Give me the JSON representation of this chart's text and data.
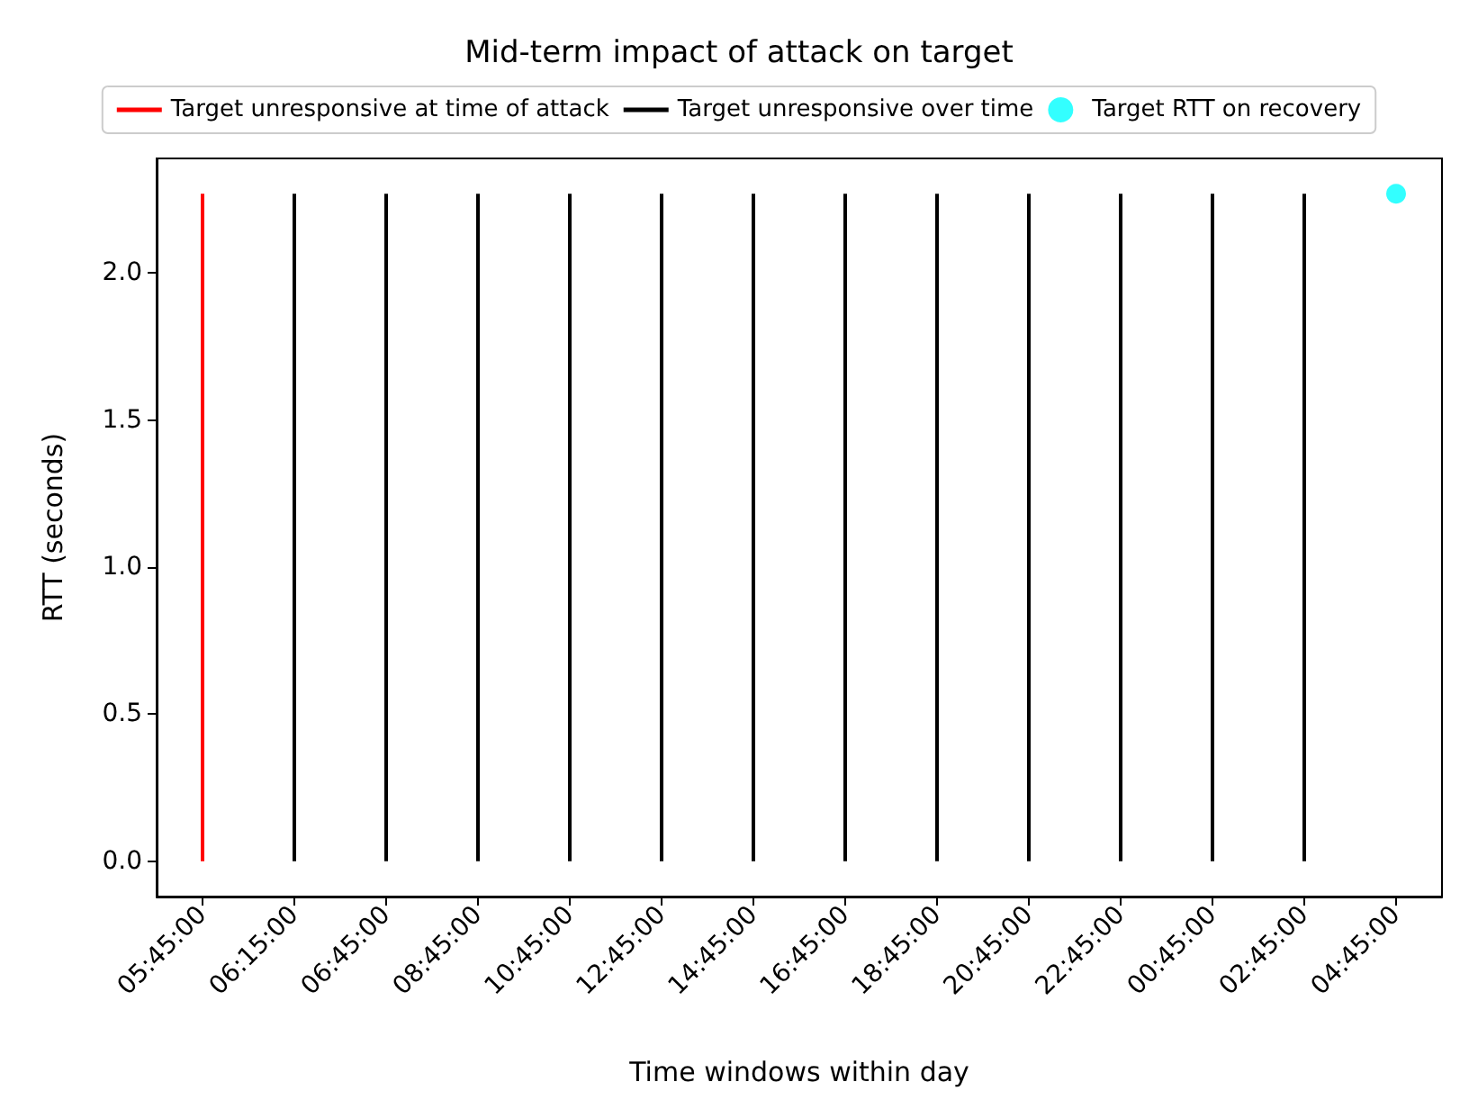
{
  "chart_data": {
    "type": "bar",
    "title": "Mid-term impact of attack on target",
    "xlabel": "Time windows within day",
    "ylabel": "RTT (seconds)",
    "categories": [
      "05:45:00",
      "06:15:00",
      "06:45:00",
      "08:45:00",
      "10:45:00",
      "12:45:00",
      "14:45:00",
      "16:45:00",
      "18:45:00",
      "20:45:00",
      "22:45:00",
      "00:45:00",
      "02:45:00",
      "04:45:00"
    ],
    "series": [
      {
        "name": "Target unresponsive at time of attack",
        "color": "#ff0000",
        "values": [
          2.27,
          null,
          null,
          null,
          null,
          null,
          null,
          null,
          null,
          null,
          null,
          null,
          null,
          null
        ]
      },
      {
        "name": "Target unresponsive over time",
        "color": "#000000",
        "values": [
          null,
          2.27,
          2.27,
          2.27,
          2.27,
          2.27,
          2.27,
          2.27,
          2.27,
          2.27,
          2.27,
          2.27,
          2.27,
          null
        ]
      },
      {
        "name": "Target RTT on recovery",
        "type": "scatter",
        "color": "#00ffff",
        "marker": "circle",
        "values": [
          null,
          null,
          null,
          null,
          null,
          null,
          null,
          null,
          null,
          null,
          null,
          null,
          null,
          2.27
        ]
      }
    ],
    "ylim": [
      -0.12,
      2.39
    ],
    "yticks": [
      {
        "value": 0,
        "label": "0.0"
      },
      0.5,
      {
        "value": 1,
        "label": "1.0"
      },
      1.5,
      {
        "value": 2,
        "label": "2.0"
      }
    ],
    "grid": false,
    "legend": "top"
  }
}
